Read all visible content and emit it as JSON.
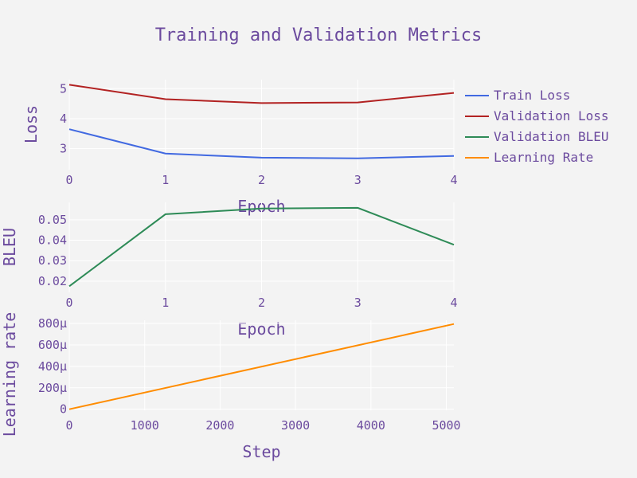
{
  "chart_data": {
    "title": "Training and Validation Metrics",
    "colors": {
      "train_loss": "#4169e1",
      "val_loss": "#b22222",
      "val_bleu": "#2e8b57",
      "learning_rate": "#ff8c00",
      "background": "#f3f3f3",
      "text": "#6b4a9e"
    },
    "legend": {
      "placement": "top-right",
      "entries": [
        "Train Loss",
        "Validation Loss",
        "Validation BLEU",
        "Learning Rate"
      ]
    },
    "subplots": [
      {
        "id": "loss",
        "type": "line",
        "xlabel": "Epoch",
        "ylabel": "Loss",
        "xlim": [
          0,
          4
        ],
        "ylim": [
          2.3,
          5.3
        ],
        "x_ticks": [
          0,
          1,
          2,
          3,
          4
        ],
        "x_tick_labels": [
          "0",
          "1",
          "2",
          "3",
          "4"
        ],
        "y_ticks": [
          3,
          4,
          5
        ],
        "y_tick_labels": [
          "3",
          "4",
          "5"
        ],
        "grid": true,
        "series": [
          {
            "name": "Train Loss",
            "color_key": "train_loss",
            "x": [
              0,
              1,
              2,
              3,
              4
            ],
            "y": [
              3.65,
              2.84,
              2.7,
              2.68,
              2.76
            ]
          },
          {
            "name": "Validation Loss",
            "color_key": "val_loss",
            "x": [
              0,
              1,
              2,
              3,
              4
            ],
            "y": [
              5.13,
              4.65,
              4.52,
              4.54,
              4.86
            ]
          }
        ]
      },
      {
        "id": "bleu",
        "type": "line",
        "xlabel": "Epoch",
        "ylabel": "BLEU",
        "xlim": [
          0,
          4
        ],
        "ylim": [
          0.0145,
          0.0585
        ],
        "x_ticks": [
          0,
          1,
          2,
          3,
          4
        ],
        "x_tick_labels": [
          "0",
          "1",
          "2",
          "3",
          "4"
        ],
        "y_ticks": [
          0.02,
          0.03,
          0.04,
          0.05
        ],
        "y_tick_labels": [
          "0.02",
          "0.03",
          "0.04",
          "0.05"
        ],
        "grid": true,
        "series": [
          {
            "name": "Validation BLEU",
            "color_key": "val_bleu",
            "x": [
              0,
              1,
              2,
              3,
              4
            ],
            "y": [
              0.0175,
              0.0527,
              0.0555,
              0.0558,
              0.0378
            ]
          }
        ]
      },
      {
        "id": "lr",
        "type": "line",
        "xlabel": "Step",
        "ylabel": "Learning rate",
        "xlim": [
          0,
          5100
        ],
        "ylim": [
          -1e-05,
          0.00083
        ],
        "x_ticks": [
          0,
          1000,
          2000,
          3000,
          4000,
          5000
        ],
        "x_tick_labels": [
          "0",
          "1000",
          "2000",
          "3000",
          "4000",
          "5000"
        ],
        "y_ticks": [
          0,
          0.0002,
          0.0004,
          0.0006,
          0.0008
        ],
        "y_tick_labels": [
          "0",
          "200μ",
          "400μ",
          "600μ",
          "800μ"
        ],
        "grid": true,
        "series": [
          {
            "name": "Learning Rate",
            "color_key": "learning_rate",
            "x": [
              0,
              5100
            ],
            "y": [
              0,
              0.000795
            ]
          }
        ]
      }
    ]
  }
}
